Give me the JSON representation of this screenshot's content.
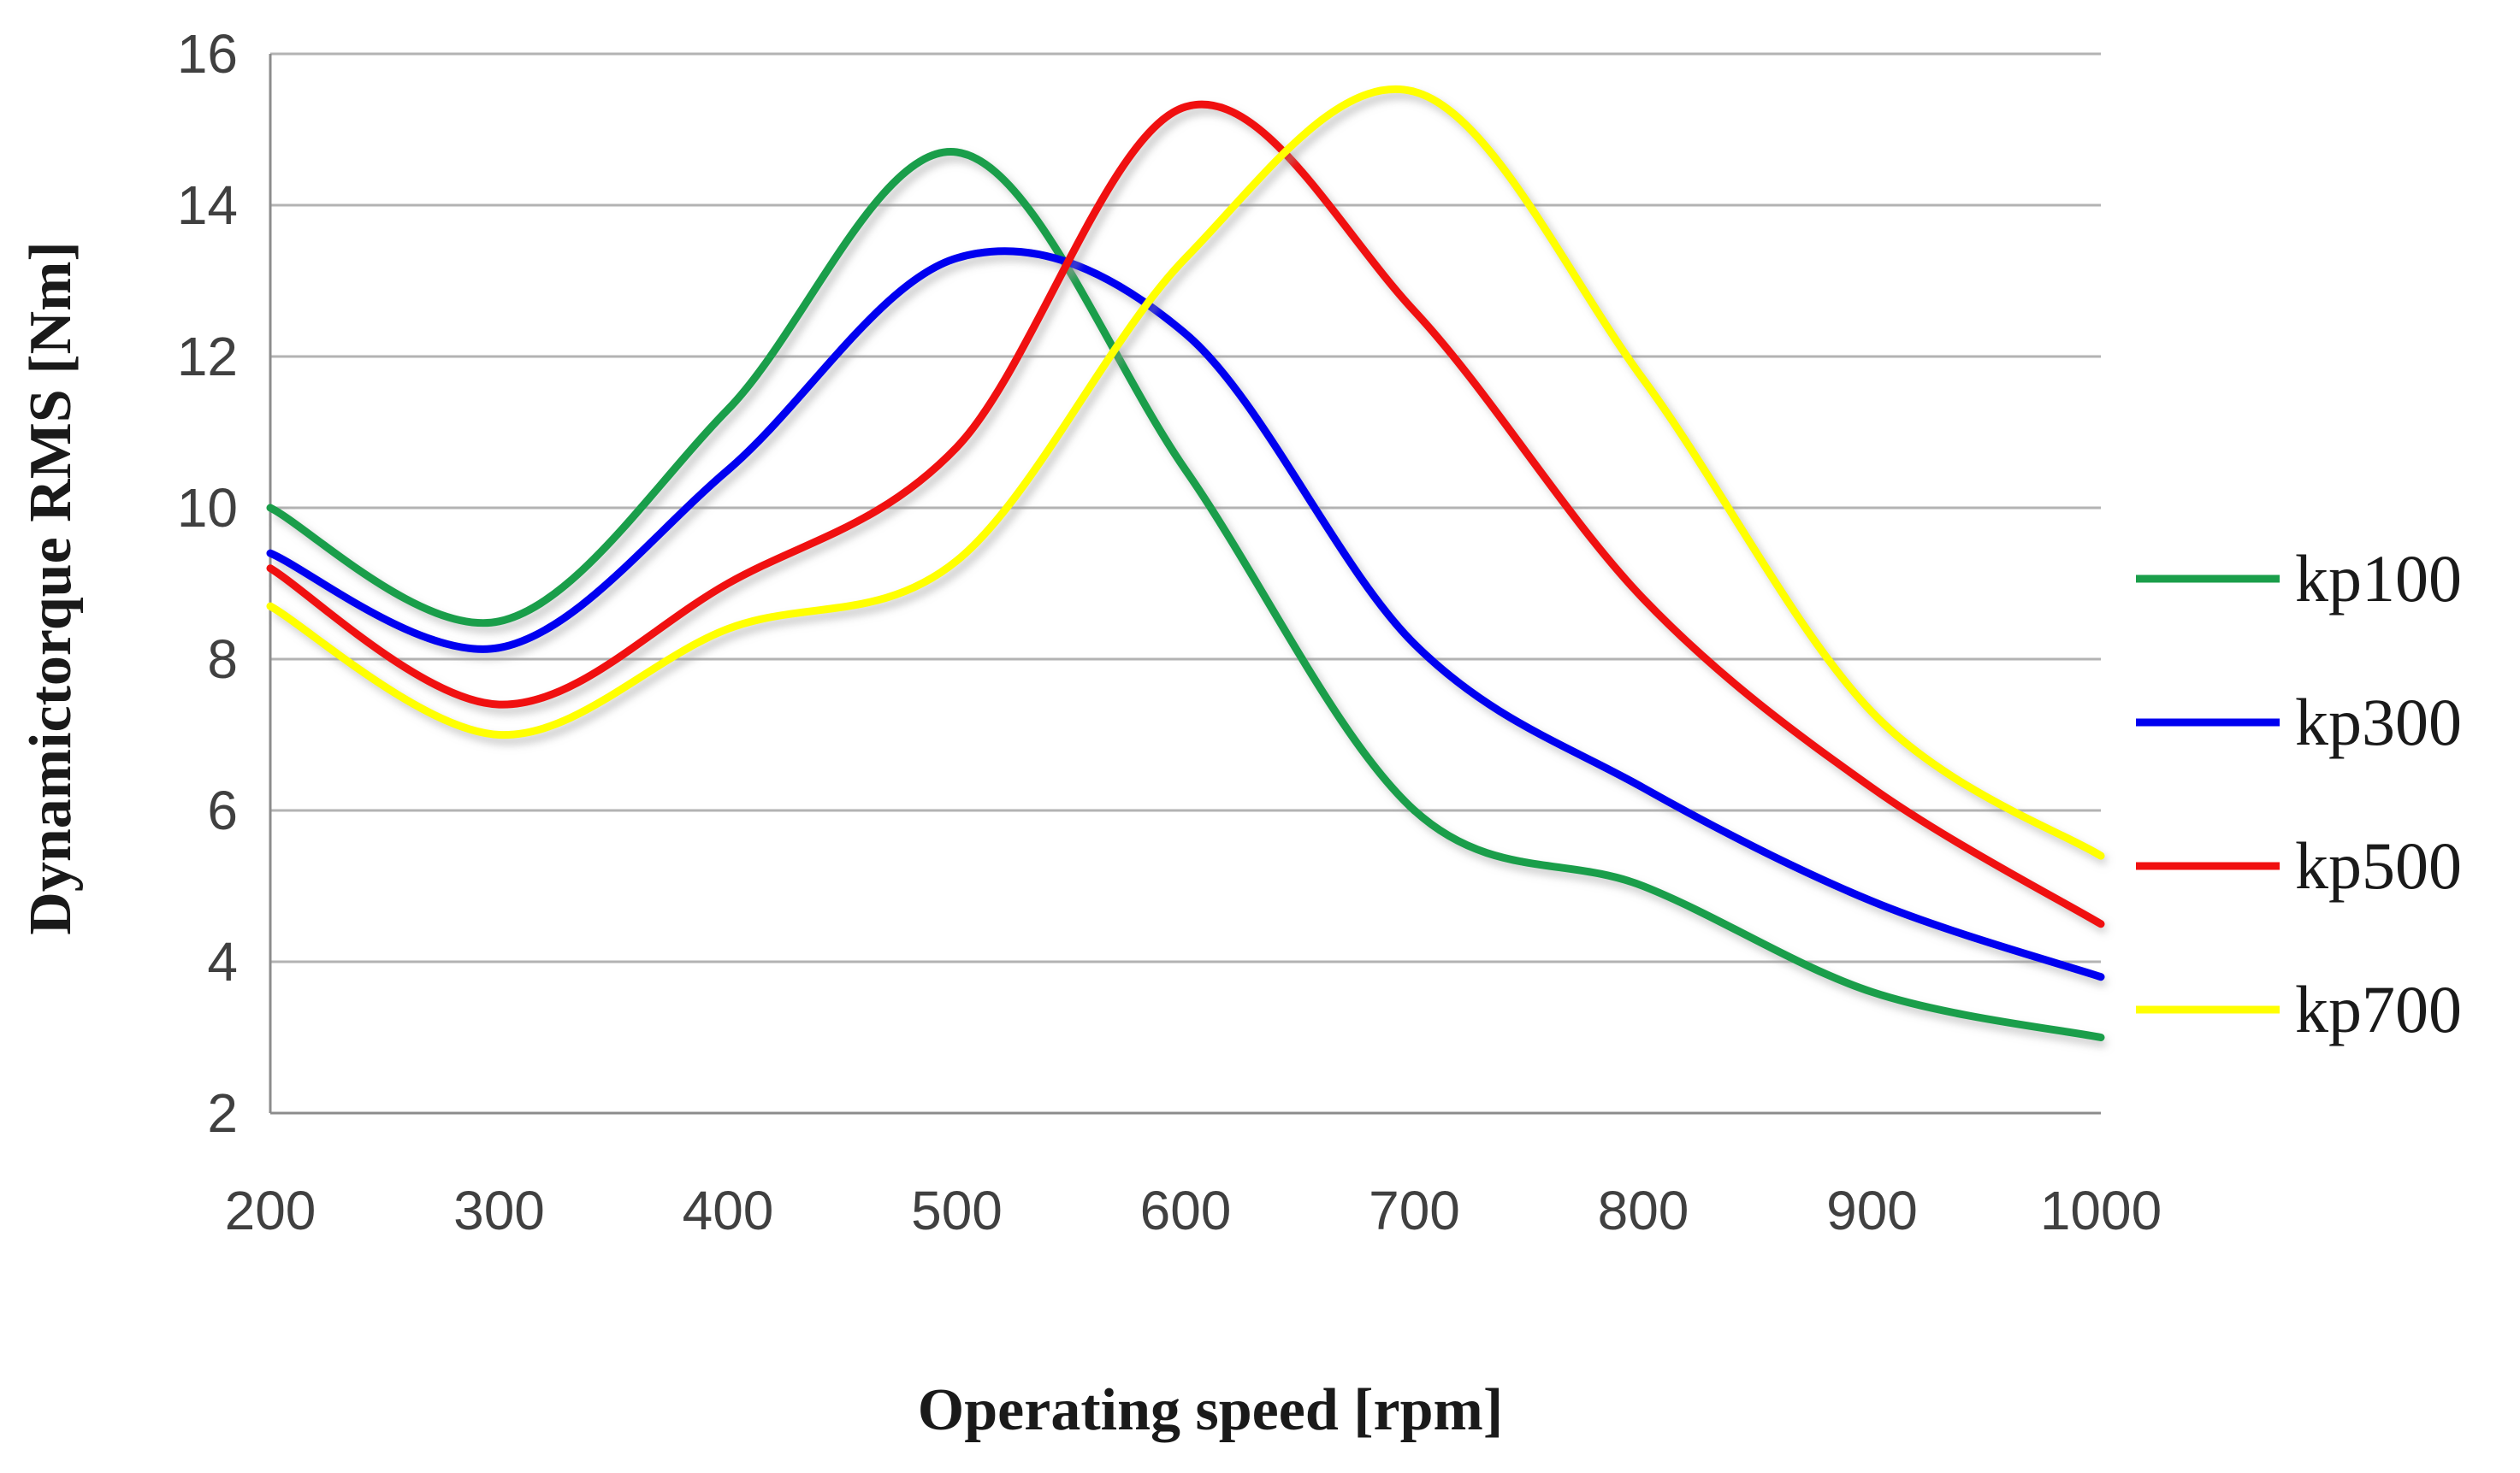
{
  "chart_data": {
    "type": "line",
    "title": "",
    "xlabel": "Operating speed  [rpm]",
    "ylabel": "Dynamictorque RMS [Nm]",
    "x": [
      200,
      300,
      400,
      500,
      600,
      700,
      800,
      900,
      1000
    ],
    "xlim": [
      200,
      1000
    ],
    "ylim": [
      2,
      16
    ],
    "xticks": [
      "200",
      "300",
      "400",
      "500",
      "600",
      "700",
      "800",
      "900",
      "1000"
    ],
    "yticks": [
      "2",
      "4",
      "6",
      "8",
      "10",
      "12",
      "14",
      "16"
    ],
    "grid": true,
    "legend_position": "right",
    "series": [
      {
        "name": "kp100",
        "color": "#1a9e4a",
        "values": [
          10.0,
          8.5,
          11.3,
          14.7,
          10.5,
          6.0,
          5.0,
          3.6,
          3.0
        ]
      },
      {
        "name": "kp300",
        "color": "#0000f0",
        "values": [
          9.4,
          8.15,
          10.5,
          13.3,
          12.3,
          8.2,
          6.3,
          4.8,
          3.8
        ]
      },
      {
        "name": "kp500",
        "color": "#f01010",
        "values": [
          9.2,
          7.4,
          9.0,
          10.8,
          15.3,
          12.6,
          8.8,
          6.3,
          4.5
        ]
      },
      {
        "name": "kp700",
        "color": "#ffff00",
        "values": [
          8.7,
          7.0,
          8.4,
          9.3,
          13.3,
          15.5,
          11.7,
          7.3,
          5.4
        ]
      }
    ]
  }
}
